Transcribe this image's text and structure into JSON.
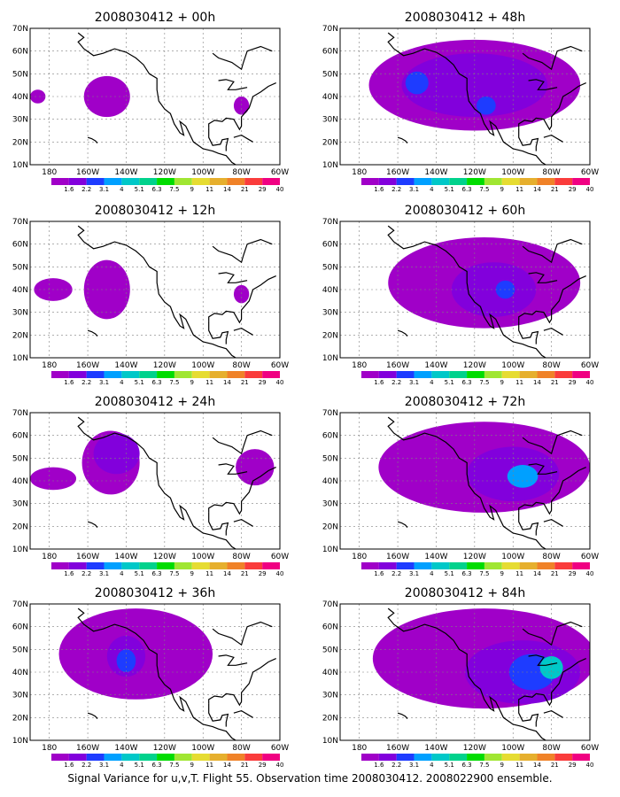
{
  "colors": {
    "scale": [
      "#a000c8",
      "#8200dc",
      "#1e3cff",
      "#00a0ff",
      "#00c8c8",
      "#00d28c",
      "#00dc00",
      "#a0e632",
      "#e6dc32",
      "#e6af2d",
      "#f08228",
      "#fa3c3c",
      "#f00082"
    ],
    "coastline": "#000000",
    "grid": "#808080"
  },
  "axes": {
    "lon_ticks": [
      "180",
      "160W",
      "140W",
      "120W",
      "100W",
      "80W",
      "60W"
    ],
    "lat_ticks": [
      "70N",
      "60N",
      "50N",
      "40N",
      "30N",
      "20N",
      "10N"
    ],
    "lon_range": [
      -190,
      -60
    ],
    "lat_range": [
      10,
      70
    ]
  },
  "colorbar_labels": [
    "1.6",
    "2.2",
    "3.1",
    "4",
    "5.1",
    "6.3",
    "7.5",
    "9",
    "11",
    "14",
    "21",
    "29",
    "40"
  ],
  "panels": [
    {
      "title": "2008030412 + 00h",
      "lead_hours": 0,
      "blobs": [
        {
          "lon": -150,
          "lat": 40,
          "rlon": 12,
          "rlat": 9,
          "level": 0
        },
        {
          "lon": -186,
          "lat": 40,
          "rlon": 4,
          "rlat": 3,
          "level": 0
        },
        {
          "lon": -80,
          "lat": 36,
          "rlon": 4,
          "rlat": 4,
          "level": 0
        }
      ]
    },
    {
      "title": "2008030412 + 48h",
      "lead_hours": 48,
      "blobs": [
        {
          "lon": -120,
          "lat": 45,
          "rlon": 55,
          "rlat": 20,
          "level": 0
        },
        {
          "lon": -120,
          "lat": 45,
          "rlon": 38,
          "rlat": 14,
          "level": 1
        },
        {
          "lon": -150,
          "lat": 46,
          "rlon": 6,
          "rlat": 5,
          "level": 2
        },
        {
          "lon": -114,
          "lat": 36,
          "rlon": 5,
          "rlat": 4,
          "level": 2
        }
      ]
    },
    {
      "title": "2008030412 + 12h",
      "lead_hours": 12,
      "blobs": [
        {
          "lon": -150,
          "lat": 40,
          "rlon": 12,
          "rlat": 13,
          "level": 0
        },
        {
          "lon": -178,
          "lat": 40,
          "rlon": 10,
          "rlat": 5,
          "level": 0
        },
        {
          "lon": -80,
          "lat": 38,
          "rlon": 4,
          "rlat": 4,
          "level": 0
        }
      ]
    },
    {
      "title": "2008030412 + 60h",
      "lead_hours": 60,
      "blobs": [
        {
          "lon": -115,
          "lat": 43,
          "rlon": 50,
          "rlat": 20,
          "level": 0
        },
        {
          "lon": -110,
          "lat": 40,
          "rlon": 22,
          "rlat": 12,
          "level": 1
        },
        {
          "lon": -104,
          "lat": 40,
          "rlon": 5,
          "rlat": 4,
          "level": 2
        }
      ]
    },
    {
      "title": "2008030412 + 24h",
      "lead_hours": 24,
      "blobs": [
        {
          "lon": -148,
          "lat": 48,
          "rlon": 15,
          "rlat": 14,
          "level": 0
        },
        {
          "lon": -145,
          "lat": 52,
          "rlon": 12,
          "rlat": 9,
          "level": 1
        },
        {
          "lon": -178,
          "lat": 41,
          "rlon": 12,
          "rlat": 5,
          "level": 0
        },
        {
          "lon": -73,
          "lat": 46,
          "rlon": 10,
          "rlat": 8,
          "level": 0
        }
      ]
    },
    {
      "title": "2008030412 + 72h",
      "lead_hours": 72,
      "blobs": [
        {
          "lon": -115,
          "lat": 46,
          "rlon": 55,
          "rlat": 20,
          "level": 0
        },
        {
          "lon": -100,
          "lat": 43,
          "rlon": 24,
          "rlat": 12,
          "level": 1
        },
        {
          "lon": -95,
          "lat": 42,
          "rlon": 8,
          "rlat": 5,
          "level": 3
        }
      ]
    },
    {
      "title": "2008030412 + 36h",
      "lead_hours": 36,
      "blobs": [
        {
          "lon": -135,
          "lat": 48,
          "rlon": 40,
          "rlat": 20,
          "level": 0
        },
        {
          "lon": -140,
          "lat": 47,
          "rlon": 10,
          "rlat": 9,
          "level": 1
        },
        {
          "lon": -140,
          "lat": 45,
          "rlon": 5,
          "rlat": 5,
          "level": 2
        }
      ]
    },
    {
      "title": "2008030412 + 84h",
      "lead_hours": 84,
      "blobs": [
        {
          "lon": -115,
          "lat": 46,
          "rlon": 58,
          "rlat": 22,
          "level": 0
        },
        {
          "lon": -95,
          "lat": 40,
          "rlon": 30,
          "rlat": 14,
          "level": 1
        },
        {
          "lon": -90,
          "lat": 40,
          "rlon": 12,
          "rlat": 8,
          "level": 2
        },
        {
          "lon": -80,
          "lat": 42,
          "rlon": 6,
          "rlat": 5,
          "level": 4
        }
      ]
    }
  ],
  "caption": "Signal Variance for u,v,T. Flight 55. Observation time 2008030412. 2008022900 ensemble."
}
